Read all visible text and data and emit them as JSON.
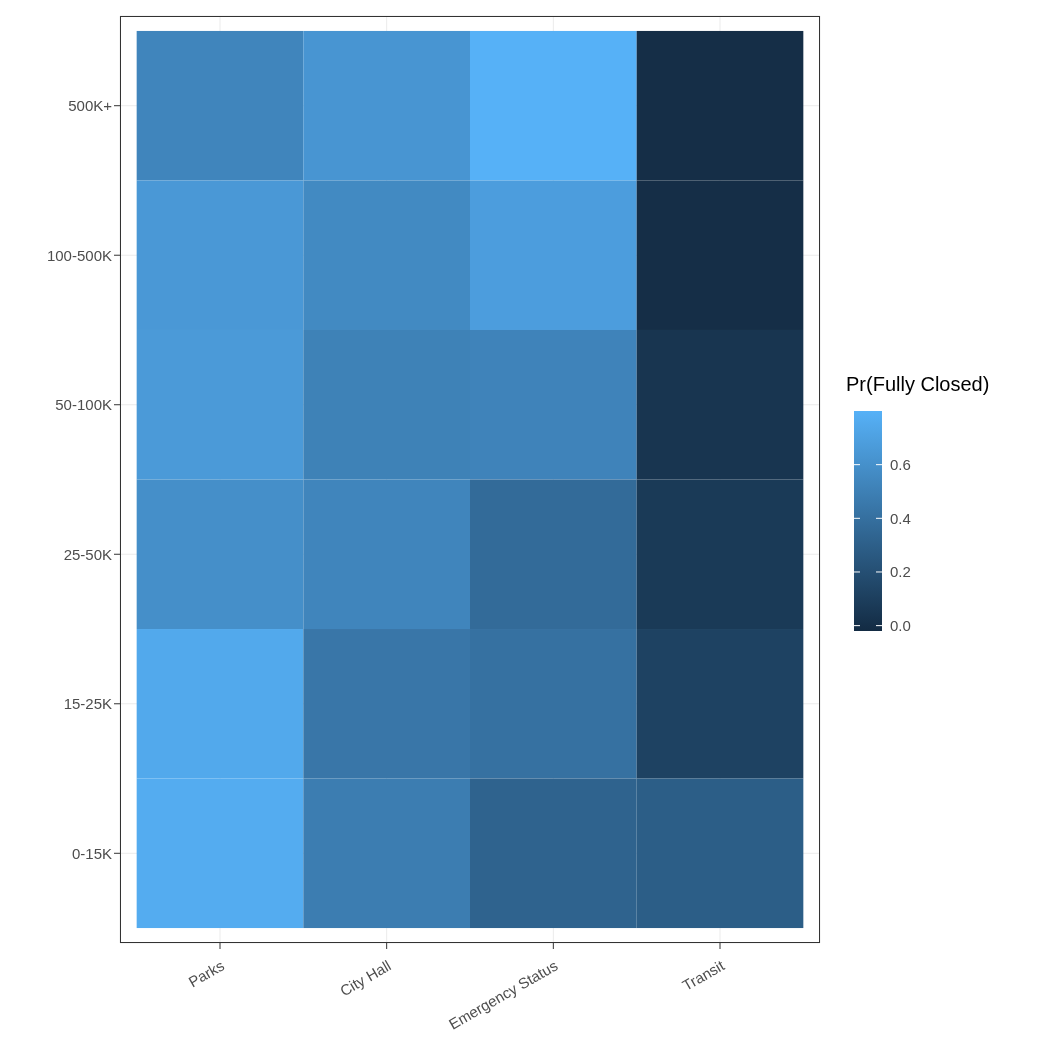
{
  "chart_data": {
    "type": "heatmap",
    "categories": [
      "Parks",
      "City Hall",
      "Emergency Status",
      "Transit"
    ],
    "y_categories": [
      "500K+",
      "100-500K",
      "50-100K",
      "25-50K",
      "15-25K",
      "0-15K"
    ],
    "cells": [
      [
        0.53,
        0.63,
        0.8,
        0.0
      ],
      [
        0.65,
        0.56,
        0.68,
        0.0
      ],
      [
        0.66,
        0.51,
        0.52,
        0.04
      ],
      [
        0.59,
        0.53,
        0.37,
        0.07
      ],
      [
        0.75,
        0.44,
        0.41,
        0.12
      ],
      [
        0.77,
        0.48,
        0.32,
        0.29
      ]
    ],
    "clabel": "Pr(Fully Closed)",
    "clim": [
      -0.02,
      0.8
    ],
    "cticks": [
      {
        "value": 0,
        "label": "0.0"
      },
      0.2,
      0.4,
      0.6
    ],
    "grid": true
  }
}
